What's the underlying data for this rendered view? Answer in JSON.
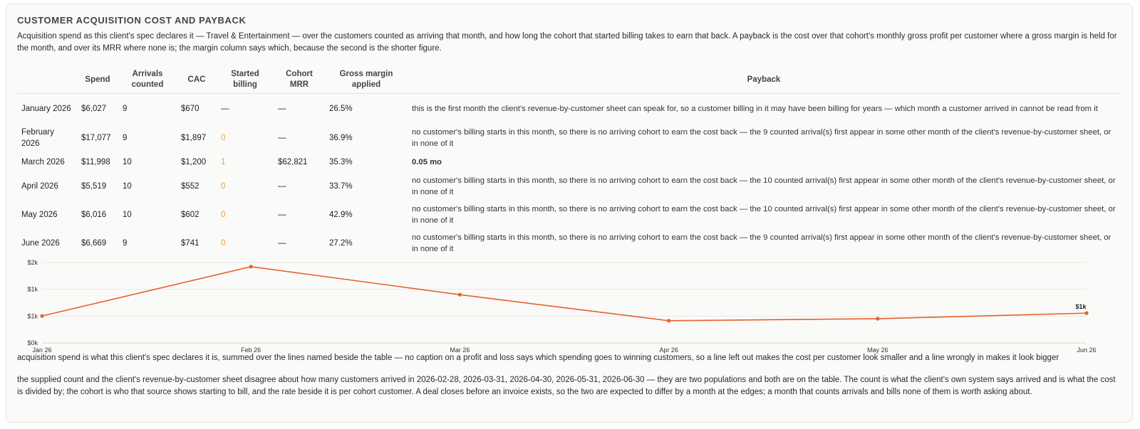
{
  "title": "CUSTOMER ACQUISITION COST AND PAYBACK",
  "description": "Acquisition spend as this client's spec declares it — Travel & Entertainment — over the customers counted as arriving that month, and how long the cohort that started billing takes to earn that back. A payback is the cost over that cohort's monthly gross profit per customer where a gross margin is held for the month, and over its MRR where none is; the margin column says which, because the second is the shorter figure.",
  "table": {
    "headers": [
      "",
      "Spend",
      "Arrivals counted",
      "CAC",
      "Started billing",
      "Cohort MRR",
      "Gross margin applied",
      "Payback"
    ],
    "rows": [
      {
        "month": "January 2026",
        "spend": "$6,027",
        "arrivals": "9",
        "cac": "$670",
        "started": "—",
        "cohort_mrr": "—",
        "margin": "26.5%",
        "payback": "this is the first month the client's revenue-by-customer sheet can speak for, so a customer billing in it may have been billing for years — which month a customer arrived in cannot be read from it"
      },
      {
        "month": "February 2026",
        "spend": "$17,077",
        "arrivals": "9",
        "cac": "$1,897",
        "started": "0",
        "cohort_mrr": "—",
        "margin": "36.9%",
        "payback": "no customer's billing starts in this month, so there is no arriving cohort to earn the cost back — the 9 counted arrival(s) first appear in some other month of the client's revenue-by-customer sheet, or in none of it"
      },
      {
        "month": "March 2026",
        "spend": "$11,998",
        "arrivals": "10",
        "cac": "$1,200",
        "started": "1",
        "cohort_mrr": "$62,821",
        "margin": "35.3%",
        "payback": "0.05 mo"
      },
      {
        "month": "April 2026",
        "spend": "$5,519",
        "arrivals": "10",
        "cac": "$552",
        "started": "0",
        "cohort_mrr": "—",
        "margin": "33.7%",
        "payback": "no customer's billing starts in this month, so there is no arriving cohort to earn the cost back — the 10 counted arrival(s) first appear in some other month of the client's revenue-by-customer sheet, or in none of it"
      },
      {
        "month": "May 2026",
        "spend": "$6,016",
        "arrivals": "10",
        "cac": "$602",
        "started": "0",
        "cohort_mrr": "—",
        "margin": "42.9%",
        "payback": "no customer's billing starts in this month, so there is no arriving cohort to earn the cost back — the 10 counted arrival(s) first appear in some other month of the client's revenue-by-customer sheet, or in none of it"
      },
      {
        "month": "June 2026",
        "spend": "$6,669",
        "arrivals": "9",
        "cac": "$741",
        "started": "0",
        "cohort_mrr": "—",
        "margin": "27.2%",
        "payback": "no customer's billing starts in this month, so there is no arriving cohort to earn the cost back — the 9 counted arrival(s) first appear in some other month of the client's revenue-by-customer sheet, or in none of it"
      }
    ]
  },
  "chart_data": {
    "type": "line",
    "categories": [
      "Jan 26",
      "Feb 26",
      "Mar 26",
      "Apr 26",
      "May 26",
      "Jun 26"
    ],
    "values": [
      670,
      1897,
      1200,
      552,
      602,
      741
    ],
    "ytick_labels": [
      "$0k",
      "$1k",
      "$1k",
      "$2k"
    ],
    "ytick_values": [
      0,
      667,
      1333,
      2000
    ],
    "ylim": [
      0,
      2000
    ],
    "end_label": "$1k",
    "line_color": "#e8602c",
    "grid": true
  },
  "footnote_spend": "acquisition spend is what this client's spec declares it is, summed over the lines named beside the table — no caption on a profit and loss says which spending goes to winning customers, so a line left out makes the cost per customer look smaller and a line wrongly in makes it look bigger",
  "footnote_count": "the supplied count and the client's revenue-by-customer sheet disagree about how many customers arrived in 2026-02-28, 2026-03-31, 2026-04-30, 2026-05-31, 2026-06-30 — they are two populations and both are on the table. The count is what the client's own system says arrived and is what the cost is divided by; the cohort is who that source shows starting to bill, and the rate beside it is per cohort customer. A deal closes before an invoice exists, so the two are expected to differ by a month at the edges; a month that counts arrivals and bills none of them is worth asking about."
}
